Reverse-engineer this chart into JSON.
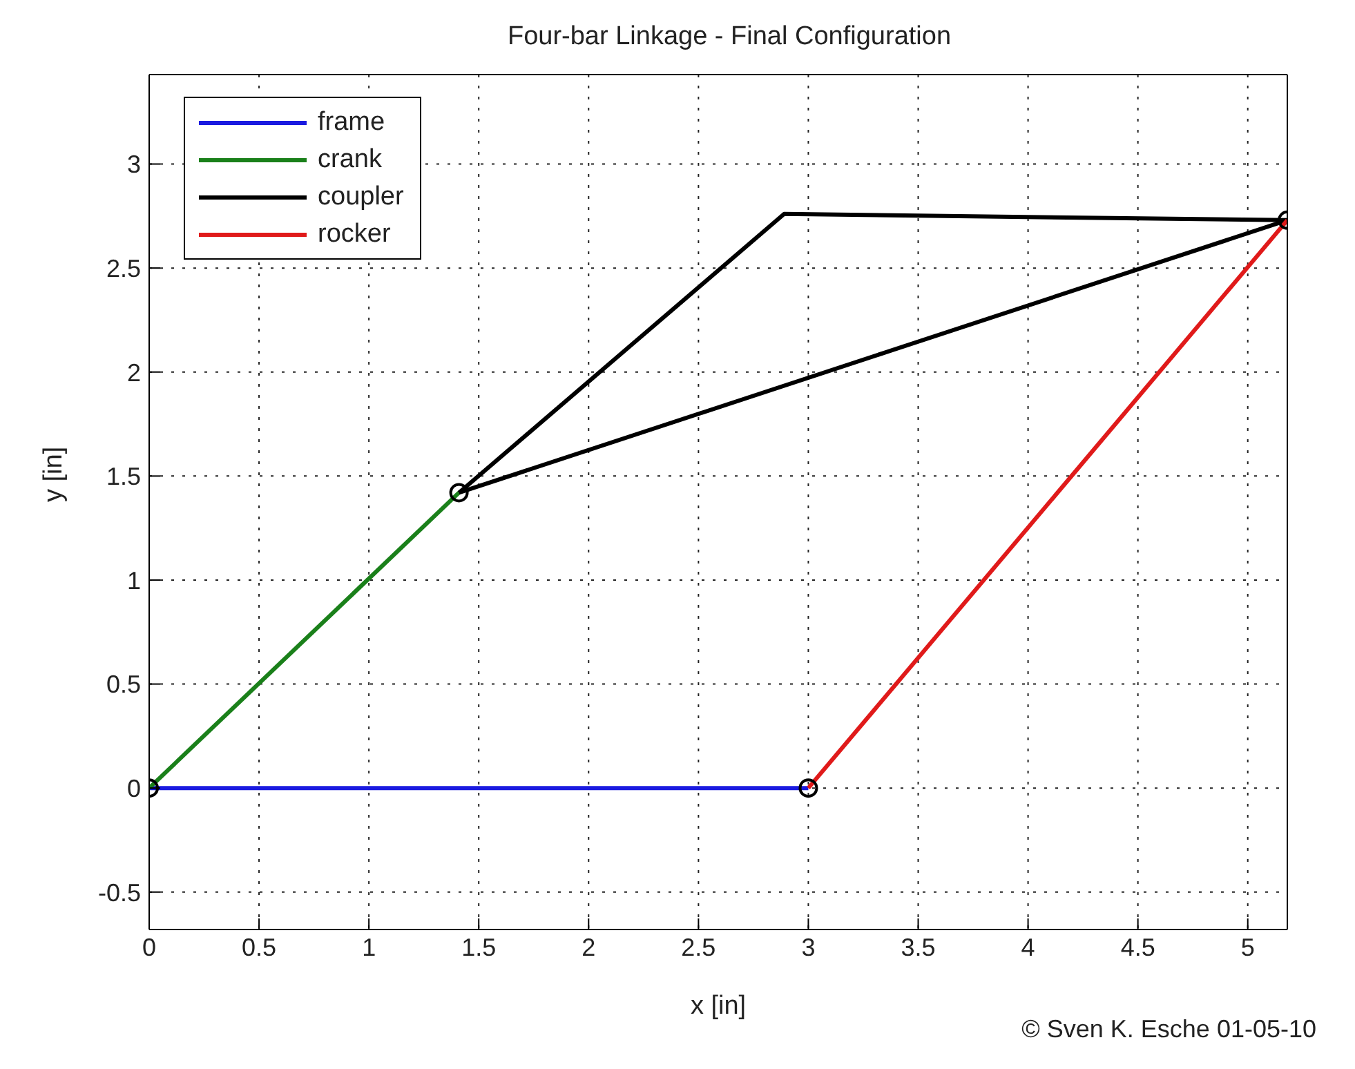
{
  "chart_data": {
    "type": "line",
    "title": "Four-bar Linkage - Final Configuration",
    "xlabel": "x [in]",
    "ylabel": "y [in]",
    "annotations": [
      "© Sven K. Esche 01-05-10"
    ],
    "xlim": [
      0,
      5.18
    ],
    "ylim": [
      -0.68,
      3.43
    ],
    "xticks": [
      0,
      0.5,
      1,
      1.5,
      2,
      2.5,
      3,
      3.5,
      4,
      4.5,
      5
    ],
    "yticks": [
      -0.5,
      0,
      0.5,
      1,
      1.5,
      2,
      2.5,
      3
    ],
    "grid": true,
    "legend": "top left",
    "line_style": "solid",
    "series": [
      {
        "name": "frame",
        "color": "#1a1ae0",
        "x": [
          0,
          3
        ],
        "values": [
          0,
          0
        ]
      },
      {
        "name": "crank",
        "color": "#1a801a",
        "x": [
          0,
          1.41
        ],
        "values": [
          0,
          1.42
        ]
      },
      {
        "name": "coupler",
        "color": "#000000",
        "x": [
          1.41,
          2.89,
          5.18
        ],
        "values": [
          1.42,
          2.76,
          2.73
        ]
      },
      {
        "color": "#000000",
        "x": [
          1.41,
          5.18
        ],
        "values": [
          1.42,
          2.73
        ]
      },
      {
        "name": "rocker",
        "color": "#e01a1a",
        "x": [
          3,
          5.18
        ],
        "values": [
          0,
          2.73
        ]
      },
      {
        "type": "scatter",
        "marker": "circle",
        "color": "#000000",
        "x": [
          0,
          3,
          1.41,
          5.18
        ],
        "values": [
          0,
          0,
          1.42,
          2.73
        ]
      }
    ]
  }
}
